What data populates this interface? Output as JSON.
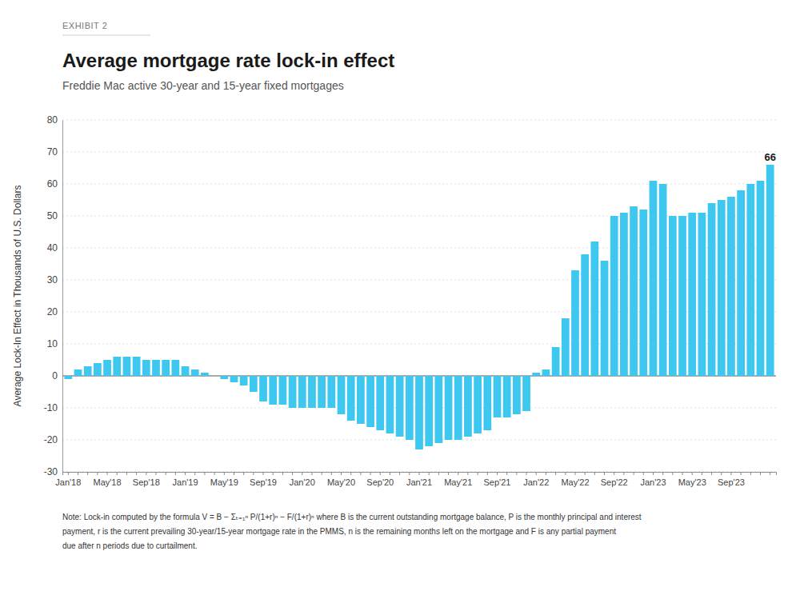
{
  "chart_data": {
    "type": "bar",
    "exhibit_label": "EXHIBIT 2",
    "title": "Average mortgage rate lock-in effect",
    "subtitle": "Freddie Mac active 30-year and 15-year fixed mortgages",
    "ylabel": "Average Lock-In Effect in Thousands of U.S. Dollars",
    "color": "#3ec8f0",
    "grid": true,
    "ylim": [
      -30,
      80
    ],
    "yticks": [
      -30,
      -20,
      -10,
      0,
      10,
      20,
      30,
      40,
      50,
      60,
      70,
      80
    ],
    "categories": [
      "Jan'18",
      null,
      null,
      null,
      "May'18",
      null,
      null,
      null,
      "Sep'18",
      null,
      null,
      null,
      "Jan'19",
      null,
      null,
      null,
      "May'19",
      null,
      null,
      null,
      "Sep'19",
      null,
      null,
      null,
      "Jan'20",
      null,
      null,
      null,
      "May'20",
      null,
      null,
      null,
      "Sep'20",
      null,
      null,
      null,
      "Jan'21",
      null,
      null,
      null,
      "May'21",
      null,
      null,
      null,
      "Sep'21",
      null,
      null,
      null,
      "Jan'22",
      null,
      null,
      null,
      "May'22",
      null,
      null,
      null,
      "Sep'22",
      null,
      null,
      null,
      "Jan'23",
      null,
      null,
      null,
      "May'23",
      null,
      null,
      null,
      "Sep'23",
      null,
      null,
      null,
      null
    ],
    "values": [
      -1,
      2,
      3,
      4,
      5,
      6,
      6,
      6,
      5,
      5,
      5,
      5,
      3,
      2,
      1,
      0,
      -1,
      -2,
      -3,
      -5,
      -8,
      -9,
      -9,
      -10,
      -10,
      -10,
      -10,
      -10,
      -12,
      -14,
      -15,
      -16,
      -17,
      -18,
      -19,
      -20,
      -23,
      -22,
      -21,
      -20,
      -20,
      -19,
      -18,
      -17,
      -13,
      -13,
      -12,
      -11,
      1,
      2,
      9,
      18,
      33,
      38,
      42,
      36,
      50,
      51,
      53,
      52,
      61,
      60,
      50,
      50,
      51,
      51,
      54,
      55,
      56,
      58,
      60,
      61,
      66
    ],
    "annotations": [
      {
        "text": "66",
        "x": 72,
        "y": 66
      }
    ],
    "notes": [
      "Note: Lock-in computed by the formula  V = B − Σₜ₌₁ⁿ P/(1+r)ⁿ − F/(1+r)ⁿ  where B is the current outstanding mortgage balance, P is the monthly principal and interest",
      "payment, r is the current prevailing 30-year/15-year mortgage rate in the PMMS, n is the remaining months left on the mortgage and F is any partial payment",
      "due after n periods due to curtailment."
    ]
  }
}
